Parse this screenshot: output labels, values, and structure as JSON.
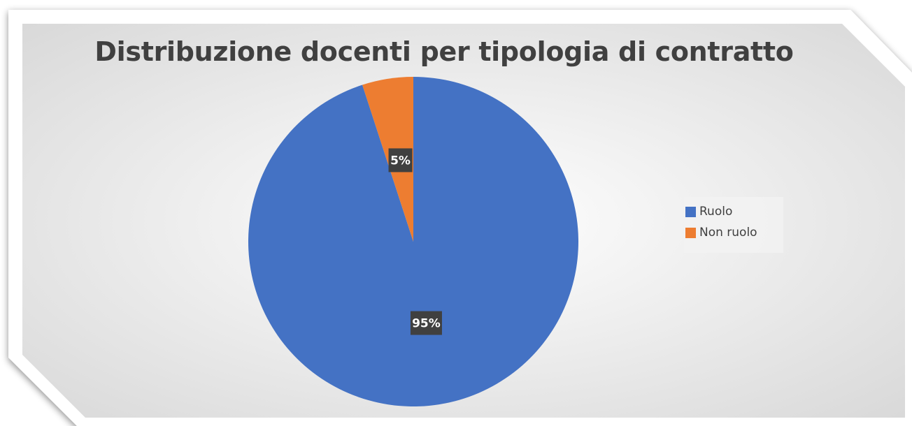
{
  "chart_data": {
    "type": "pie",
    "title": "Distribuzione docenti per tipologia di contratto",
    "start_angle_deg": 0,
    "direction": "clockwise",
    "series": [
      {
        "name": "Ruolo",
        "value": 95,
        "label": "95%",
        "color": "#4472C4"
      },
      {
        "name": "Non ruolo",
        "value": 5,
        "label": "5%",
        "color": "#ED7D31"
      }
    ],
    "legend_position": "right"
  }
}
